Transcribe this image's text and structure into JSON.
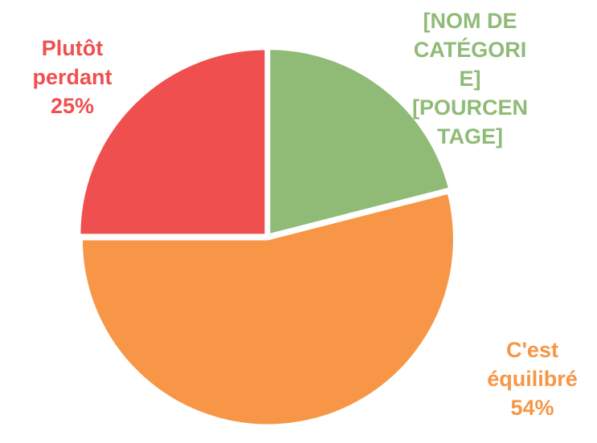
{
  "chart_data": {
    "type": "pie",
    "categories": [
      "[NOM DE CATÉGORIE]",
      "C'est équilibré",
      "Plutôt perdant"
    ],
    "values": [
      21,
      54,
      25
    ],
    "value_labels": [
      "[POURCENTAGE]",
      "54%",
      "25%"
    ],
    "colors": [
      "#8fbb77",
      "#f79646",
      "#f04f4f"
    ]
  }
}
